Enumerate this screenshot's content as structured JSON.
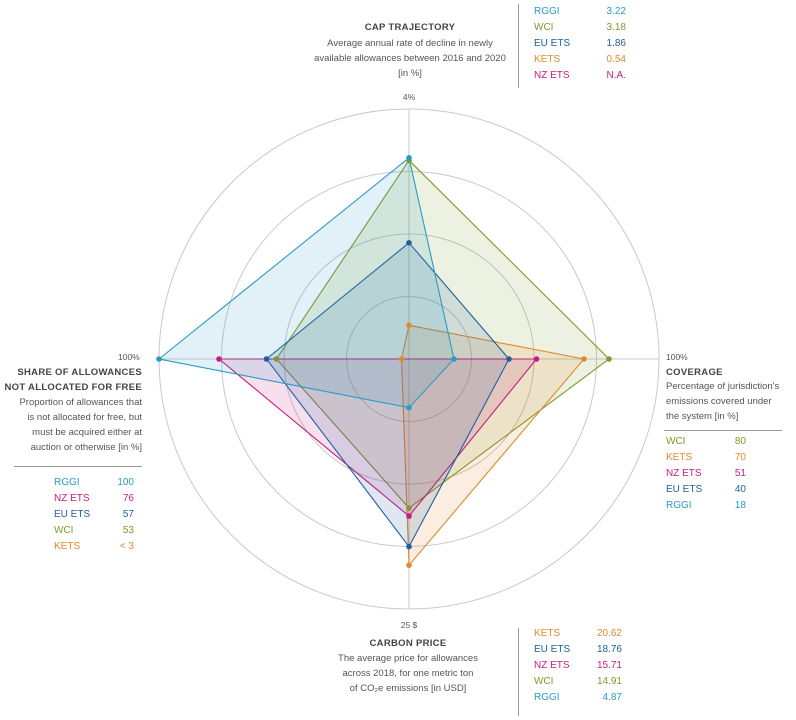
{
  "chart_data": {
    "type": "radar",
    "axes": [
      {
        "key": "cap",
        "tick": "4%",
        "max": 4,
        "title": "CAP TRAJECTORY",
        "desc": [
          "Average annual rate of decline in newly",
          "available allowances between 2016 and 2020",
          "[in %]"
        ],
        "legend": [
          {
            "name": "RGGI",
            "value": "3.22"
          },
          {
            "name": "WCI",
            "value": "3.18"
          },
          {
            "name": "EU ETS",
            "value": "1.86"
          },
          {
            "name": "KETS",
            "value": "0.54"
          },
          {
            "name": "NZ ETS",
            "value": "N.A."
          }
        ]
      },
      {
        "key": "coverage",
        "tick": "100%",
        "max": 100,
        "title": "COVERAGE",
        "desc": [
          "Percentage of jurisdiction's",
          "emissions covered under",
          "the system [in %]"
        ],
        "legend": [
          {
            "name": "WCI",
            "value": "80"
          },
          {
            "name": "KETS",
            "value": "70"
          },
          {
            "name": "NZ ETS",
            "value": "51"
          },
          {
            "name": "EU ETS",
            "value": "40"
          },
          {
            "name": "RGGI",
            "value": "18"
          }
        ]
      },
      {
        "key": "price",
        "tick": "25 $",
        "max": 25,
        "title": "CARBON PRICE",
        "desc": [
          "The average price for allowances",
          "across 2018, for one metric ton",
          "of CO₂e emissions [in USD]"
        ],
        "legend": [
          {
            "name": "KETS",
            "value": "20.62"
          },
          {
            "name": "EU ETS",
            "value": "18.76"
          },
          {
            "name": "NZ ETS",
            "value": "15.71"
          },
          {
            "name": "WCI",
            "value": "14.91"
          },
          {
            "name": "RGGI",
            "value": "4.87"
          }
        ]
      },
      {
        "key": "auction",
        "tick": "100%",
        "max": 100,
        "title": "SHARE OF ALLOWANCES\nNOT ALLOCATED FOR FREE",
        "desc": [
          "Proportion of allowances that",
          "is not allocated for free, but",
          "must be acquired either at",
          "auction or otherwise [in %]"
        ],
        "legend": [
          {
            "name": "RGGI",
            "value": "100"
          },
          {
            "name": "NZ ETS",
            "value": "76"
          },
          {
            "name": "EU ETS",
            "value": "57"
          },
          {
            "name": "WCI",
            "value": "53"
          },
          {
            "name": "KETS",
            "value": "< 3"
          }
        ]
      }
    ],
    "series": [
      {
        "name": "WCI",
        "color": "#7f9a28",
        "values": [
          3.18,
          80,
          14.91,
          53
        ]
      },
      {
        "name": "KETS",
        "color": "#e08a2c",
        "values": [
          0.54,
          70,
          20.62,
          3
        ]
      },
      {
        "name": "NZ ETS",
        "color": "#c81d7c",
        "values": [
          null,
          51,
          15.71,
          76
        ]
      },
      {
        "name": "EU ETS",
        "color": "#1f5fa0",
        "values": [
          1.86,
          40,
          18.76,
          57
        ]
      },
      {
        "name": "RGGI",
        "color": "#2a9bc7",
        "values": [
          3.22,
          18,
          4.87,
          100
        ]
      }
    ],
    "rings": 4,
    "grid": true
  }
}
